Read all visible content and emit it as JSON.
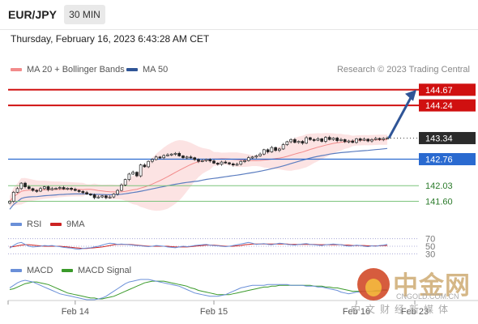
{
  "header": {
    "symbol": "EUR/JPY",
    "timeframe": "30 MIN",
    "datetime": "Thursday, February 16, 2023 6:43:28 AM CET",
    "credit": "Research © 2023 Trading Central"
  },
  "legends": {
    "main": [
      {
        "label": "MA 20 + Bollinger Bands",
        "color": "#f28b8b"
      },
      {
        "label": "MA 50",
        "color": "#2f5597"
      }
    ],
    "rsi": [
      {
        "label": "RSI",
        "color": "#6a8fd8"
      },
      {
        "label": "9MA",
        "color": "#cc2222"
      }
    ],
    "macd": [
      {
        "label": "MACD",
        "color": "#6a8fd8"
      },
      {
        "label": "MACD Signal",
        "color": "#3a9a2a"
      }
    ]
  },
  "watermark": {
    "brand": "中金网",
    "url": "CNGOLD.COM.CN",
    "tagline": "中文财经新媒体"
  },
  "chart_data": {
    "type": "candlestick",
    "ylim": [
      141.3,
      145.0
    ],
    "xlabels": [
      {
        "label": "Feb 14",
        "index": 17
      },
      {
        "label": "Feb 15",
        "index": 53
      },
      {
        "label": "Feb 16",
        "index": 90
      },
      {
        "label": "Feb 23",
        "index": 99
      }
    ],
    "current_price": {
      "label": "143.34",
      "value": 143.34
    },
    "levels": [
      {
        "label": "144.67",
        "value": 144.67,
        "kind": "resistance"
      },
      {
        "label": "144.24",
        "value": 144.24,
        "kind": "resistance"
      },
      {
        "label": "142.76",
        "value": 142.76,
        "kind": "pivot"
      },
      {
        "label": "142.03",
        "value": 142.03,
        "kind": "support"
      },
      {
        "label": "141.60",
        "value": 141.6,
        "kind": "support"
      }
    ],
    "closes": [
      141.6,
      141.85,
      141.95,
      142.1,
      142.0,
      141.95,
      141.9,
      141.88,
      141.95,
      142.0,
      141.92,
      141.95,
      141.96,
      141.98,
      141.94,
      141.96,
      141.93,
      141.9,
      141.87,
      141.84,
      141.8,
      141.78,
      141.7,
      141.72,
      141.75,
      141.7,
      141.72,
      141.8,
      141.9,
      142.05,
      142.2,
      142.35,
      142.4,
      142.3,
      142.6,
      142.55,
      142.7,
      142.75,
      142.82,
      142.8,
      142.86,
      142.88,
      142.9,
      142.92,
      142.85,
      142.8,
      142.82,
      142.8,
      142.75,
      142.7,
      142.72,
      142.75,
      142.71,
      142.65,
      142.62,
      142.68,
      142.66,
      142.63,
      142.6,
      142.62,
      142.7,
      142.72,
      142.8,
      142.82,
      142.85,
      142.9,
      143.02,
      142.96,
      143.08,
      143.0,
      143.04,
      143.16,
      143.24,
      143.3,
      143.22,
      143.25,
      143.2,
      143.35,
      143.3,
      143.28,
      143.32,
      143.25,
      143.36,
      143.3,
      143.34,
      143.27,
      143.3,
      143.24,
      143.26,
      143.22,
      143.32,
      143.28,
      143.31,
      143.26,
      143.3,
      143.33,
      143.3,
      143.33,
      143.34
    ],
    "projection": {
      "from": 143.34,
      "to": 144.67
    },
    "rsi": {
      "levels": [
        70,
        50,
        30
      ],
      "ylim": [
        20,
        80
      ],
      "rsi": [
        45,
        52,
        58,
        60,
        55,
        50,
        48,
        49,
        50,
        52,
        51,
        52,
        50,
        49,
        47,
        46,
        45,
        43,
        42,
        44,
        45,
        46,
        48,
        50,
        53,
        56,
        58,
        57,
        55,
        56,
        55,
        54,
        53,
        52,
        51,
        50,
        49,
        50,
        52,
        51,
        50,
        48,
        47,
        46,
        48,
        50,
        49,
        50,
        52,
        53,
        54,
        55,
        53,
        52,
        51,
        50,
        49,
        50,
        52,
        54,
        56,
        58,
        60,
        58,
        55,
        56,
        57,
        55,
        54,
        56,
        58,
        57,
        55,
        54,
        53,
        55,
        56,
        57,
        55,
        54,
        53,
        52,
        54,
        55,
        56,
        55,
        54,
        52,
        50,
        51,
        53,
        52,
        50,
        49,
        51,
        50,
        52,
        53,
        55
      ],
      "ma9": [
        48,
        49,
        51,
        53,
        54,
        54,
        53,
        52,
        51,
        50,
        50,
        50,
        50,
        50,
        49,
        48,
        47,
        46,
        45,
        44,
        44,
        45,
        46,
        47,
        48,
        50,
        52,
        54,
        55,
        55,
        55,
        55,
        54,
        53,
        52,
        51,
        50,
        50,
        50,
        50,
        50,
        50,
        49,
        48,
        48,
        48,
        48,
        49,
        50,
        51,
        52,
        53,
        53,
        53,
        52,
        51,
        50,
        50,
        50,
        51,
        52,
        54,
        55,
        56,
        56,
        56,
        56,
        56,
        56,
        56,
        56,
        56,
        56,
        55,
        55,
        55,
        55,
        55,
        55,
        55,
        54,
        54,
        54,
        54,
        54,
        54,
        54,
        53,
        53,
        52,
        52,
        52,
        52,
        51,
        51,
        51,
        51,
        52,
        52
      ]
    },
    "macd": {
      "macd": [
        0.02,
        0.05,
        0.08,
        0.1,
        0.11,
        0.1,
        0.09,
        0.07,
        0.05,
        0.03,
        0.01,
        -0.01,
        -0.03,
        -0.05,
        -0.06,
        -0.07,
        -0.08,
        -0.09,
        -0.1,
        -0.11,
        -0.12,
        -0.12,
        -0.12,
        -0.11,
        -0.1,
        -0.08,
        -0.05,
        -0.02,
        0.01,
        0.04,
        0.07,
        0.09,
        0.1,
        0.11,
        0.12,
        0.12,
        0.12,
        0.11,
        0.1,
        0.09,
        0.08,
        0.07,
        0.06,
        0.05,
        0.04,
        0.02,
        0.0,
        -0.02,
        -0.04,
        -0.05,
        -0.06,
        -0.07,
        -0.08,
        -0.08,
        -0.08,
        -0.07,
        -0.06,
        -0.04,
        -0.02,
        0.0,
        0.02,
        0.03,
        0.04,
        0.05,
        0.05,
        0.05,
        0.05,
        0.06,
        0.06,
        0.06,
        0.06,
        0.06,
        0.06,
        0.05,
        0.05,
        0.05,
        0.05,
        0.04,
        0.04,
        0.04,
        0.03,
        0.03,
        0.02,
        0.01,
        0.0,
        -0.01,
        -0.03,
        -0.04,
        -0.05,
        -0.04,
        -0.03,
        -0.03,
        -0.02,
        -0.02,
        -0.02,
        -0.01,
        -0.01,
        0.0,
        0.0
      ],
      "signal": [
        0.0,
        0.01,
        0.03,
        0.05,
        0.07,
        0.08,
        0.09,
        0.09,
        0.08,
        0.07,
        0.06,
        0.04,
        0.02,
        0.0,
        -0.02,
        -0.04,
        -0.05,
        -0.06,
        -0.07,
        -0.08,
        -0.09,
        -0.1,
        -0.1,
        -0.11,
        -0.11,
        -0.1,
        -0.09,
        -0.08,
        -0.06,
        -0.04,
        -0.02,
        0.0,
        0.02,
        0.04,
        0.06,
        0.08,
        0.09,
        0.1,
        0.1,
        0.1,
        0.1,
        0.09,
        0.08,
        0.07,
        0.06,
        0.05,
        0.04,
        0.02,
        0.01,
        -0.01,
        -0.02,
        -0.03,
        -0.04,
        -0.05,
        -0.06,
        -0.06,
        -0.06,
        -0.06,
        -0.05,
        -0.04,
        -0.03,
        -0.02,
        -0.01,
        0.0,
        0.01,
        0.02,
        0.03,
        0.03,
        0.04,
        0.04,
        0.05,
        0.05,
        0.05,
        0.05,
        0.05,
        0.05,
        0.05,
        0.05,
        0.05,
        0.04,
        0.04,
        0.04,
        0.03,
        0.03,
        0.02,
        0.02,
        0.01,
        0.0,
        -0.01,
        -0.02,
        -0.02,
        -0.02,
        -0.02,
        -0.02,
        -0.02,
        -0.02,
        -0.02,
        -0.01,
        -0.01
      ]
    }
  }
}
